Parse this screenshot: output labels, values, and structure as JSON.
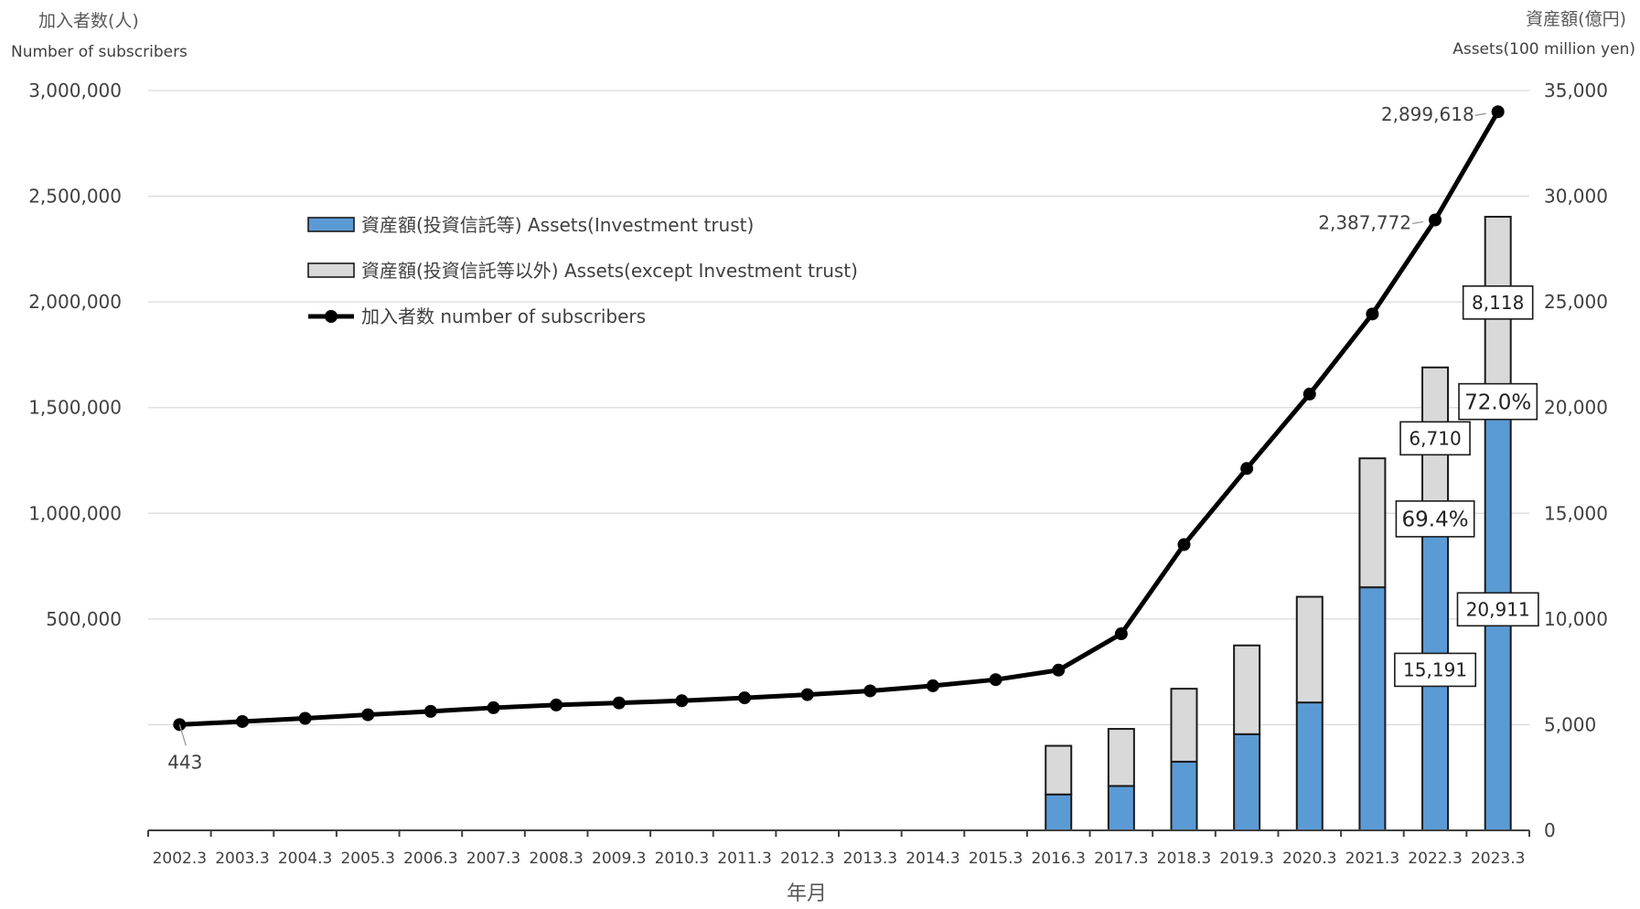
{
  "chart_data": {
    "type": "bar",
    "categories": [
      "2002.3",
      "2003.3",
      "2004.3",
      "2005.3",
      "2006.3",
      "2007.3",
      "2008.3",
      "2009.3",
      "2010.3",
      "2011.3",
      "2012.3",
      "2013.3",
      "2014.3",
      "2015.3",
      "2016.3",
      "2017.3",
      "2018.3",
      "2019.3",
      "2020.3",
      "2021.3",
      "2022.3",
      "2023.3"
    ],
    "xlabel": "年月",
    "y_left": {
      "label_ja": "加入者数(人)",
      "label_en": "Number of subscribers",
      "ylim": [
        -500000,
        3000000
      ],
      "ticks": [
        {
          "value": 500000,
          "label": "500,000"
        },
        {
          "value": 1000000,
          "label": "1,000,000"
        },
        {
          "value": 1500000,
          "label": "1,500,000"
        },
        {
          "value": 2000000,
          "label": "2,000,000"
        },
        {
          "value": 2500000,
          "label": "2,500,000"
        },
        {
          "value": 3000000,
          "label": "3,000,000"
        }
      ]
    },
    "y_right": {
      "label_ja": "資産額(億円)",
      "label_en": "Assets(100 million yen)",
      "ylim": [
        0,
        35000
      ],
      "ticks": [
        {
          "value": 0,
          "label": "0"
        },
        {
          "value": 5000,
          "label": "5,000"
        },
        {
          "value": 10000,
          "label": "10,000"
        },
        {
          "value": 15000,
          "label": "15,000"
        },
        {
          "value": 20000,
          "label": "20,000"
        },
        {
          "value": 25000,
          "label": "25,000"
        },
        {
          "value": 30000,
          "label": "30,000"
        },
        {
          "value": 35000,
          "label": "35,000"
        }
      ]
    },
    "grid": true,
    "legend_position": "upper-left",
    "series": [
      {
        "name": "資産額(投資信託等) Assets(Investment trust)",
        "kind": "bar",
        "axis": "right",
        "stack": "assets",
        "color": "#5b9bd5",
        "values": [
          null,
          null,
          null,
          null,
          null,
          null,
          null,
          null,
          null,
          null,
          null,
          null,
          null,
          null,
          1700,
          2100,
          3250,
          4550,
          6050,
          11500,
          15191,
          20911
        ]
      },
      {
        "name": "資産額(投資信託等以外) Assets(except Investment trust)",
        "kind": "bar",
        "axis": "right",
        "stack": "assets",
        "color": "#d9d9d9",
        "values": [
          null,
          null,
          null,
          null,
          null,
          null,
          null,
          null,
          null,
          null,
          null,
          null,
          null,
          null,
          2300,
          2700,
          3450,
          4200,
          5000,
          6100,
          6710,
          8118
        ]
      },
      {
        "name": "加入者数 number of subscribers",
        "kind": "line",
        "axis": "left",
        "color": "#000000",
        "values": [
          443,
          15000,
          30000,
          47000,
          63000,
          80000,
          93000,
          103000,
          113000,
          127000,
          142000,
          160000,
          184000,
          213000,
          258000,
          430000,
          852000,
          1212000,
          1564000,
          1943000,
          2387772,
          2899618
        ]
      }
    ],
    "data_labels": [
      {
        "category": "2002.3",
        "series": "加入者数 number of subscribers",
        "text": "443"
      },
      {
        "category": "2022.3",
        "series": "加入者数 number of subscribers",
        "text": "2,387,772"
      },
      {
        "category": "2023.3",
        "series": "加入者数 number of subscribers",
        "text": "2,899,618"
      },
      {
        "category": "2022.3",
        "series": "資産額(投資信託等) Assets(Investment trust)",
        "text": "15,191"
      },
      {
        "category": "2023.3",
        "series": "資産額(投資信託等) Assets(Investment trust)",
        "text": "20,911"
      },
      {
        "category": "2022.3",
        "series": "資産額(投資信託等以外) Assets(except Investment trust)",
        "text": "6,710"
      },
      {
        "category": "2023.3",
        "series": "資産額(投資信託等以外) Assets(except Investment trust)",
        "text": "8,118"
      }
    ],
    "annotations": [
      {
        "category": "2022.3",
        "text": "69.4%"
      },
      {
        "category": "2023.3",
        "text": "72.0%"
      }
    ]
  }
}
